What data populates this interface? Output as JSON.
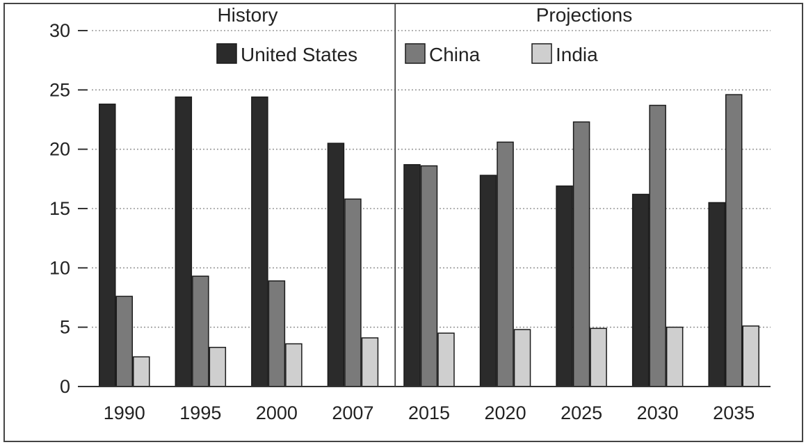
{
  "chart_data": {
    "type": "bar",
    "categories": [
      "1990",
      "1995",
      "2000",
      "2007",
      "2015",
      "2020",
      "2025",
      "2030",
      "2035"
    ],
    "series": [
      {
        "name": "United States",
        "values": [
          23.8,
          24.4,
          24.4,
          20.5,
          18.7,
          17.8,
          16.9,
          16.2,
          15.5
        ],
        "color": "#2b2b2b"
      },
      {
        "name": "China",
        "values": [
          7.6,
          9.3,
          8.9,
          15.8,
          18.6,
          20.6,
          22.3,
          23.7,
          24.6
        ],
        "color": "#7a7a7a"
      },
      {
        "name": "India",
        "values": [
          2.5,
          3.3,
          3.6,
          4.1,
          4.5,
          4.8,
          4.9,
          5.0,
          5.1
        ],
        "color": "#cfcfcf"
      }
    ],
    "ylim": [
      0,
      30
    ],
    "yticks": [
      "0",
      "5",
      "10",
      "15",
      "20",
      "25",
      "30"
    ],
    "grid": true,
    "legend_position": "top-center",
    "sections": [
      {
        "label": "History",
        "categories": [
          "1990",
          "1995",
          "2000",
          "2007"
        ]
      },
      {
        "label": "Projections",
        "categories": [
          "2015",
          "2020",
          "2025",
          "2030",
          "2035"
        ]
      }
    ]
  }
}
